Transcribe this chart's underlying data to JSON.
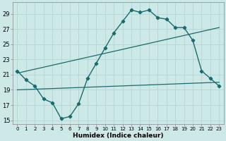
{
  "xlabel": "Humidex (Indice chaleur)",
  "bg_color": "#cce9e8",
  "grid_color": "#b8d8d7",
  "line_color": "#1a6b6b",
  "x_values": [
    0,
    1,
    2,
    3,
    4,
    5,
    6,
    7,
    8,
    9,
    10,
    11,
    12,
    13,
    14,
    15,
    16,
    17,
    18,
    19,
    20,
    21,
    22,
    23
  ],
  "main_y": [
    21.5,
    20.3,
    19.5,
    17.8,
    17.3,
    15.2,
    15.5,
    17.2,
    20.5,
    22.5,
    24.5,
    26.5,
    28.0,
    29.5,
    29.2,
    29.5,
    28.5,
    28.3,
    27.2,
    27.2,
    25.5,
    21.5,
    20.5,
    19.5
  ],
  "upper_trend_x": [
    0,
    23
  ],
  "upper_trend_y": [
    21.2,
    27.2
  ],
  "lower_trend_x": [
    0,
    23
  ],
  "lower_trend_y": [
    19.0,
    20.0
  ],
  "xlim": [
    -0.5,
    23.5
  ],
  "ylim": [
    14.5,
    30.5
  ],
  "yticks": [
    15,
    17,
    19,
    21,
    23,
    25,
    27,
    29
  ],
  "xticks": [
    0,
    1,
    2,
    3,
    4,
    5,
    6,
    7,
    8,
    9,
    10,
    11,
    12,
    13,
    14,
    15,
    16,
    17,
    18,
    19,
    20,
    21,
    22,
    23
  ]
}
